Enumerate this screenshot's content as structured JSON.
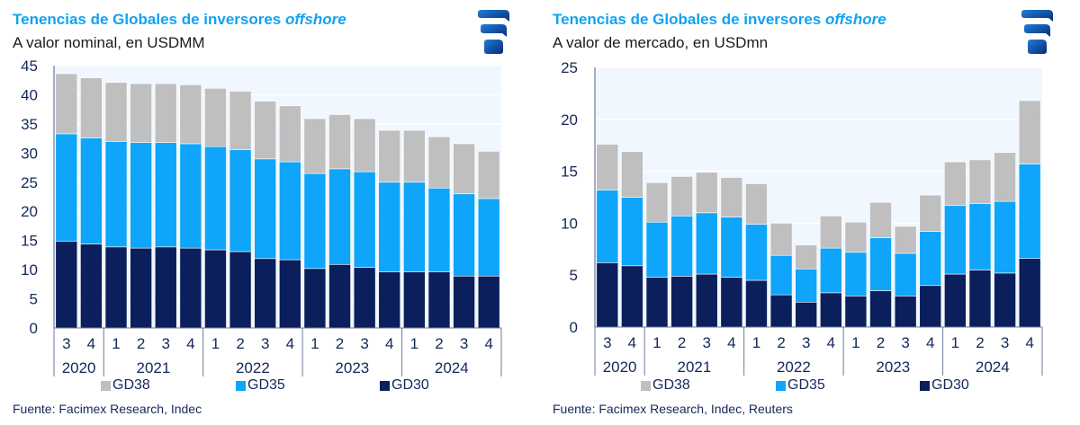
{
  "colors": {
    "title": "#12a2f0",
    "gd38": "#bfbfbf",
    "gd35": "#0ea5fa",
    "gd30": "#0a1f5c",
    "axis_text": "#14285a",
    "plot_bg": "#f0f7fe",
    "gridline": "#ffffff"
  },
  "logo": {
    "icon": "facimex-logo-icon"
  },
  "chart_data": [
    {
      "type": "bar",
      "stacked": true,
      "title": "Tenencias de Globales de inversores",
      "title_italic": "offshore",
      "subtitle": "A valor nominal, en USDMM",
      "xlabel": "",
      "ylabel": "",
      "ylim": [
        0,
        45
      ],
      "yticks": [
        0,
        5,
        10,
        15,
        20,
        25,
        30,
        35,
        40,
        45
      ],
      "grid": true,
      "legend_position": "bottom",
      "categories": [
        "3",
        "4",
        "1",
        "2",
        "3",
        "4",
        "1",
        "2",
        "3",
        "4",
        "1",
        "2",
        "3",
        "4",
        "1",
        "2",
        "3",
        "4"
      ],
      "year_groups": [
        {
          "label": "2020",
          "count": 2
        },
        {
          "label": "2021",
          "count": 4
        },
        {
          "label": "2022",
          "count": 4
        },
        {
          "label": "2023",
          "count": 4
        },
        {
          "label": "2024",
          "count": 4
        }
      ],
      "series": [
        {
          "name": "GD30",
          "values": [
            14.9,
            14.4,
            13.9,
            13.7,
            13.9,
            13.7,
            13.4,
            13.1,
            11.9,
            11.7,
            10.2,
            10.9,
            10.4,
            9.6,
            9.6,
            9.6,
            8.9,
            8.9
          ]
        },
        {
          "name": "GD35",
          "values": [
            18.4,
            18.2,
            18.1,
            18.1,
            17.9,
            17.9,
            17.7,
            17.5,
            17.1,
            16.8,
            16.3,
            16.4,
            16.4,
            15.4,
            15.4,
            14.4,
            14.1,
            13.3
          ]
        },
        {
          "name": "GD38",
          "values": [
            10.3,
            10.3,
            10.1,
            10.1,
            10.1,
            10.1,
            10.0,
            10.0,
            9.9,
            9.6,
            9.4,
            9.3,
            9.1,
            8.9,
            8.9,
            8.8,
            8.6,
            8.1
          ]
        }
      ],
      "legend": [
        "GD38",
        "GD35",
        "GD30"
      ],
      "source": "Fuente: Facimex Research, Indec"
    },
    {
      "type": "bar",
      "stacked": true,
      "title": "Tenencias de Globales de inversores",
      "title_italic": "offshore",
      "subtitle": "A valor de mercado, en USDmn",
      "xlabel": "",
      "ylabel": "",
      "ylim": [
        0,
        25
      ],
      "yticks": [
        0,
        5,
        10,
        15,
        20,
        25
      ],
      "grid": true,
      "legend_position": "bottom",
      "categories": [
        "3",
        "4",
        "1",
        "2",
        "3",
        "4",
        "1",
        "2",
        "3",
        "4",
        "1",
        "2",
        "3",
        "4",
        "1",
        "2",
        "3",
        "4"
      ],
      "year_groups": [
        {
          "label": "2020",
          "count": 2
        },
        {
          "label": "2021",
          "count": 4
        },
        {
          "label": "2022",
          "count": 4
        },
        {
          "label": "2023",
          "count": 4
        },
        {
          "label": "2024",
          "count": 4
        }
      ],
      "series": [
        {
          "name": "GD30",
          "values": [
            6.2,
            5.9,
            4.8,
            4.9,
            5.1,
            4.8,
            4.5,
            3.1,
            2.4,
            3.3,
            3.0,
            3.5,
            3.0,
            4.0,
            5.1,
            5.5,
            5.2,
            6.6
          ]
        },
        {
          "name": "GD35",
          "values": [
            7.0,
            6.6,
            5.3,
            5.8,
            5.9,
            5.8,
            5.4,
            3.8,
            3.2,
            4.3,
            4.2,
            5.1,
            4.1,
            5.2,
            6.6,
            6.4,
            6.9,
            9.1
          ]
        },
        {
          "name": "GD38",
          "values": [
            4.4,
            4.4,
            3.8,
            3.8,
            3.9,
            3.8,
            3.9,
            3.1,
            2.3,
            3.1,
            2.9,
            3.4,
            2.6,
            3.5,
            4.2,
            4.2,
            4.7,
            6.1
          ]
        }
      ],
      "legend": [
        "GD38",
        "GD35",
        "GD30"
      ],
      "source": "Fuente: Facimex Research, Indec, Reuters"
    }
  ]
}
